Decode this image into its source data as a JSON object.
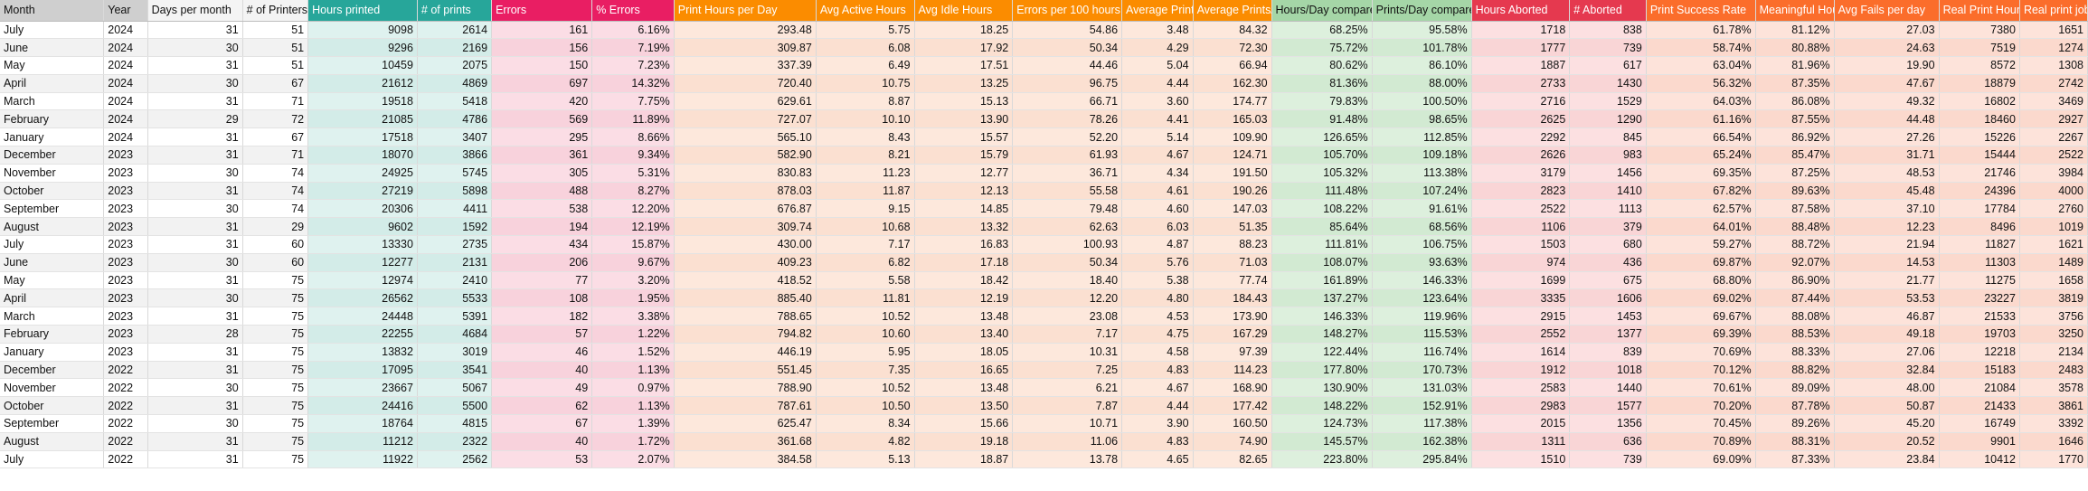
{
  "headers": [
    "Month",
    "Year",
    "Days per month",
    "# of Printers",
    "Hours printed",
    "# of prints",
    "Errors",
    "% Errors",
    "Print Hours per Day",
    "Avg Active Hours",
    "Avg Idle Hours",
    "Errors per 100 hours",
    "Average Print Duration",
    "Average Prints/Day",
    "Hours/Day compared",
    "Prints/Day compared",
    "Hours Aborted",
    "# Aborted",
    "Print Success Rate",
    "Meaningful Hours",
    "Avg Fails per day",
    "Real Print Hours",
    "Real print jobs"
  ],
  "colors": {
    "teal": "#27a69a",
    "magenta": "#e91e63",
    "orange": "#fb8c00",
    "green": "#a5d6a7",
    "red": "#e5394f"
  },
  "rows": [
    [
      "July",
      "2024",
      "31",
      "51",
      "9098",
      "2614",
      "161",
      "6.16%",
      "293.48",
      "5.75",
      "18.25",
      "54.86",
      "3.48",
      "84.32",
      "68.25%",
      "95.58%",
      "1718",
      "838",
      "61.78%",
      "81.12%",
      "27.03",
      "7380",
      "1651"
    ],
    [
      "June",
      "2024",
      "30",
      "51",
      "9296",
      "2169",
      "156",
      "7.19%",
      "309.87",
      "6.08",
      "17.92",
      "50.34",
      "4.29",
      "72.30",
      "75.72%",
      "101.78%",
      "1777",
      "739",
      "58.74%",
      "80.88%",
      "24.63",
      "7519",
      "1274"
    ],
    [
      "May",
      "2024",
      "31",
      "51",
      "10459",
      "2075",
      "150",
      "7.23%",
      "337.39",
      "6.49",
      "17.51",
      "44.46",
      "5.04",
      "66.94",
      "80.62%",
      "86.10%",
      "1887",
      "617",
      "63.04%",
      "81.96%",
      "19.90",
      "8572",
      "1308"
    ],
    [
      "April",
      "2024",
      "30",
      "67",
      "21612",
      "4869",
      "697",
      "14.32%",
      "720.40",
      "10.75",
      "13.25",
      "96.75",
      "4.44",
      "162.30",
      "81.36%",
      "88.00%",
      "2733",
      "1430",
      "56.32%",
      "87.35%",
      "47.67",
      "18879",
      "2742"
    ],
    [
      "March",
      "2024",
      "31",
      "71",
      "19518",
      "5418",
      "420",
      "7.75%",
      "629.61",
      "8.87",
      "15.13",
      "66.71",
      "3.60",
      "174.77",
      "79.83%",
      "100.50%",
      "2716",
      "1529",
      "64.03%",
      "86.08%",
      "49.32",
      "16802",
      "3469"
    ],
    [
      "February",
      "2024",
      "29",
      "72",
      "21085",
      "4786",
      "569",
      "11.89%",
      "727.07",
      "10.10",
      "13.90",
      "78.26",
      "4.41",
      "165.03",
      "91.48%",
      "98.65%",
      "2625",
      "1290",
      "61.16%",
      "87.55%",
      "44.48",
      "18460",
      "2927"
    ],
    [
      "January",
      "2024",
      "31",
      "67",
      "17518",
      "3407",
      "295",
      "8.66%",
      "565.10",
      "8.43",
      "15.57",
      "52.20",
      "5.14",
      "109.90",
      "126.65%",
      "112.85%",
      "2292",
      "845",
      "66.54%",
      "86.92%",
      "27.26",
      "15226",
      "2267"
    ],
    [
      "December",
      "2023",
      "31",
      "71",
      "18070",
      "3866",
      "361",
      "9.34%",
      "582.90",
      "8.21",
      "15.79",
      "61.93",
      "4.67",
      "124.71",
      "105.70%",
      "109.18%",
      "2626",
      "983",
      "65.24%",
      "85.47%",
      "31.71",
      "15444",
      "2522"
    ],
    [
      "November",
      "2023",
      "30",
      "74",
      "24925",
      "5745",
      "305",
      "5.31%",
      "830.83",
      "11.23",
      "12.77",
      "36.71",
      "4.34",
      "191.50",
      "105.32%",
      "113.38%",
      "3179",
      "1456",
      "69.35%",
      "87.25%",
      "48.53",
      "21746",
      "3984"
    ],
    [
      "October",
      "2023",
      "31",
      "74",
      "27219",
      "5898",
      "488",
      "8.27%",
      "878.03",
      "11.87",
      "12.13",
      "55.58",
      "4.61",
      "190.26",
      "111.48%",
      "107.24%",
      "2823",
      "1410",
      "67.82%",
      "89.63%",
      "45.48",
      "24396",
      "4000"
    ],
    [
      "September",
      "2023",
      "30",
      "74",
      "20306",
      "4411",
      "538",
      "12.20%",
      "676.87",
      "9.15",
      "14.85",
      "79.48",
      "4.60",
      "147.03",
      "108.22%",
      "91.61%",
      "2522",
      "1113",
      "62.57%",
      "87.58%",
      "37.10",
      "17784",
      "2760"
    ],
    [
      "August",
      "2023",
      "31",
      "29",
      "9602",
      "1592",
      "194",
      "12.19%",
      "309.74",
      "10.68",
      "13.32",
      "62.63",
      "6.03",
      "51.35",
      "85.64%",
      "68.56%",
      "1106",
      "379",
      "64.01%",
      "88.48%",
      "12.23",
      "8496",
      "1019"
    ],
    [
      "July",
      "2023",
      "31",
      "60",
      "13330",
      "2735",
      "434",
      "15.87%",
      "430.00",
      "7.17",
      "16.83",
      "100.93",
      "4.87",
      "88.23",
      "111.81%",
      "106.75%",
      "1503",
      "680",
      "59.27%",
      "88.72%",
      "21.94",
      "11827",
      "1621"
    ],
    [
      "June",
      "2023",
      "30",
      "60",
      "12277",
      "2131",
      "206",
      "9.67%",
      "409.23",
      "6.82",
      "17.18",
      "50.34",
      "5.76",
      "71.03",
      "108.07%",
      "93.63%",
      "974",
      "436",
      "69.87%",
      "92.07%",
      "14.53",
      "11303",
      "1489"
    ],
    [
      "May",
      "2023",
      "31",
      "75",
      "12974",
      "2410",
      "77",
      "3.20%",
      "418.52",
      "5.58",
      "18.42",
      "18.40",
      "5.38",
      "77.74",
      "161.89%",
      "146.33%",
      "1699",
      "675",
      "68.80%",
      "86.90%",
      "21.77",
      "11275",
      "1658"
    ],
    [
      "April",
      "2023",
      "30",
      "75",
      "26562",
      "5533",
      "108",
      "1.95%",
      "885.40",
      "11.81",
      "12.19",
      "12.20",
      "4.80",
      "184.43",
      "137.27%",
      "123.64%",
      "3335",
      "1606",
      "69.02%",
      "87.44%",
      "53.53",
      "23227",
      "3819"
    ],
    [
      "March",
      "2023",
      "31",
      "75",
      "24448",
      "5391",
      "182",
      "3.38%",
      "788.65",
      "10.52",
      "13.48",
      "23.08",
      "4.53",
      "173.90",
      "146.33%",
      "119.96%",
      "2915",
      "1453",
      "69.67%",
      "88.08%",
      "46.87",
      "21533",
      "3756"
    ],
    [
      "February",
      "2023",
      "28",
      "75",
      "22255",
      "4684",
      "57",
      "1.22%",
      "794.82",
      "10.60",
      "13.40",
      "7.17",
      "4.75",
      "167.29",
      "148.27%",
      "115.53%",
      "2552",
      "1377",
      "69.39%",
      "88.53%",
      "49.18",
      "19703",
      "3250"
    ],
    [
      "January",
      "2023",
      "31",
      "75",
      "13832",
      "3019",
      "46",
      "1.52%",
      "446.19",
      "5.95",
      "18.05",
      "10.31",
      "4.58",
      "97.39",
      "122.44%",
      "116.74%",
      "1614",
      "839",
      "70.69%",
      "88.33%",
      "27.06",
      "12218",
      "2134"
    ],
    [
      "December",
      "2022",
      "31",
      "75",
      "17095",
      "3541",
      "40",
      "1.13%",
      "551.45",
      "7.35",
      "16.65",
      "7.25",
      "4.83",
      "114.23",
      "177.80%",
      "170.73%",
      "1912",
      "1018",
      "70.12%",
      "88.82%",
      "32.84",
      "15183",
      "2483"
    ],
    [
      "November",
      "2022",
      "30",
      "75",
      "23667",
      "5067",
      "49",
      "0.97%",
      "788.90",
      "10.52",
      "13.48",
      "6.21",
      "4.67",
      "168.90",
      "130.90%",
      "131.03%",
      "2583",
      "1440",
      "70.61%",
      "89.09%",
      "48.00",
      "21084",
      "3578"
    ],
    [
      "October",
      "2022",
      "31",
      "75",
      "24416",
      "5500",
      "62",
      "1.13%",
      "787.61",
      "10.50",
      "13.50",
      "7.87",
      "4.44",
      "177.42",
      "148.22%",
      "152.91%",
      "2983",
      "1577",
      "70.20%",
      "87.78%",
      "50.87",
      "21433",
      "3861"
    ],
    [
      "September",
      "2022",
      "30",
      "75",
      "18764",
      "4815",
      "67",
      "1.39%",
      "625.47",
      "8.34",
      "15.66",
      "10.71",
      "3.90",
      "160.50",
      "124.73%",
      "117.38%",
      "2015",
      "1356",
      "70.45%",
      "89.26%",
      "45.20",
      "16749",
      "3392"
    ],
    [
      "August",
      "2022",
      "31",
      "75",
      "11212",
      "2322",
      "40",
      "1.72%",
      "361.68",
      "4.82",
      "19.18",
      "11.06",
      "4.83",
      "74.90",
      "145.57%",
      "162.38%",
      "1311",
      "636",
      "70.89%",
      "88.31%",
      "20.52",
      "9901",
      "1646"
    ],
    [
      "July",
      "2022",
      "31",
      "75",
      "11922",
      "2562",
      "53",
      "2.07%",
      "384.58",
      "5.13",
      "18.87",
      "13.78",
      "4.65",
      "82.65",
      "223.80%",
      "295.84%",
      "1510",
      "739",
      "69.09%",
      "87.33%",
      "23.84",
      "10412",
      "1770"
    ]
  ]
}
